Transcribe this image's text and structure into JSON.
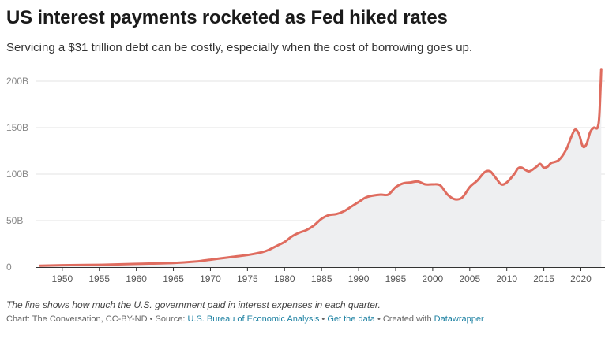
{
  "header": {
    "title": "US interest payments rocketed as Fed hiked rates",
    "subtitle": "Servicing a $31 trillion debt can be costly, especially when the cost of borrowing goes up."
  },
  "note": "The line shows how much the U.S. government paid in interest expenses in each quarter.",
  "footer": {
    "chart_prefix": "Chart: The Conversation, CC-BY-ND • Source: ",
    "source_link": "U.S. Bureau of Economic Analysis",
    "sep1": " • ",
    "data_link": "Get the data",
    "sep2": " • Created with ",
    "tool_link": "Datawrapper"
  },
  "colors": {
    "line": "#df6c5f",
    "area": "#eeeff1",
    "grid": "#e3e3e3",
    "axis": "#333333"
  },
  "chart_data": {
    "type": "area",
    "title": "US interest payments rocketed as Fed hiked rates",
    "xlabel": "",
    "ylabel": "",
    "xlim": [
      1946.5,
      2023.25
    ],
    "ylim": [
      0,
      200
    ],
    "y_ticks": [
      {
        "value": 0,
        "label": "0"
      },
      {
        "value": 50,
        "label": "50B"
      },
      {
        "value": 100,
        "label": "100B"
      },
      {
        "value": 150,
        "label": "150B"
      },
      {
        "value": 200,
        "label": "200B"
      }
    ],
    "x_ticks": [
      1950,
      1955,
      1960,
      1965,
      1970,
      1975,
      1980,
      1985,
      1990,
      1995,
      2000,
      2005,
      2010,
      2015,
      2020
    ],
    "grid": true,
    "series": [
      {
        "x": [
          1947,
          1950,
          1955,
          1960,
          1965,
          1968,
          1970,
          1971,
          1973,
          1975,
          1977,
          1978,
          1979,
          1980,
          1981,
          1982,
          1983,
          1984,
          1985,
          1986,
          1987,
          1988,
          1989,
          1990,
          1991,
          1992,
          1993,
          1994,
          1995,
          1996,
          1997,
          1998,
          1999,
          2000,
          2001,
          2002,
          2003,
          2004,
          2005,
          2006,
          2007,
          2007.75,
          2008.5,
          2009.25,
          2010,
          2011,
          2011.5,
          2012,
          2013,
          2014,
          2014.5,
          2015,
          2015.5,
          2016,
          2017,
          2018,
          2018.75,
          2019.25,
          2019.75,
          2020.25,
          2020.75,
          2021.25,
          2021.75,
          2022.25,
          2022.5,
          2022.75
        ],
        "values": [
          1.5,
          2,
          2.5,
          3.5,
          4.5,
          6,
          8,
          9,
          11,
          13,
          16,
          19,
          23,
          27,
          33,
          37,
          40,
          45,
          52,
          56,
          57,
          60,
          65,
          70,
          75,
          77,
          78,
          78,
          86,
          90,
          91,
          92,
          89,
          89,
          88,
          78,
          73,
          75,
          86,
          93,
          102,
          103,
          96,
          89,
          91,
          100,
          106,
          107,
          103,
          108,
          111,
          107,
          108,
          112,
          115,
          126,
          141,
          148,
          143,
          130,
          132,
          145,
          150,
          150,
          165,
          213
        ]
      }
    ]
  }
}
